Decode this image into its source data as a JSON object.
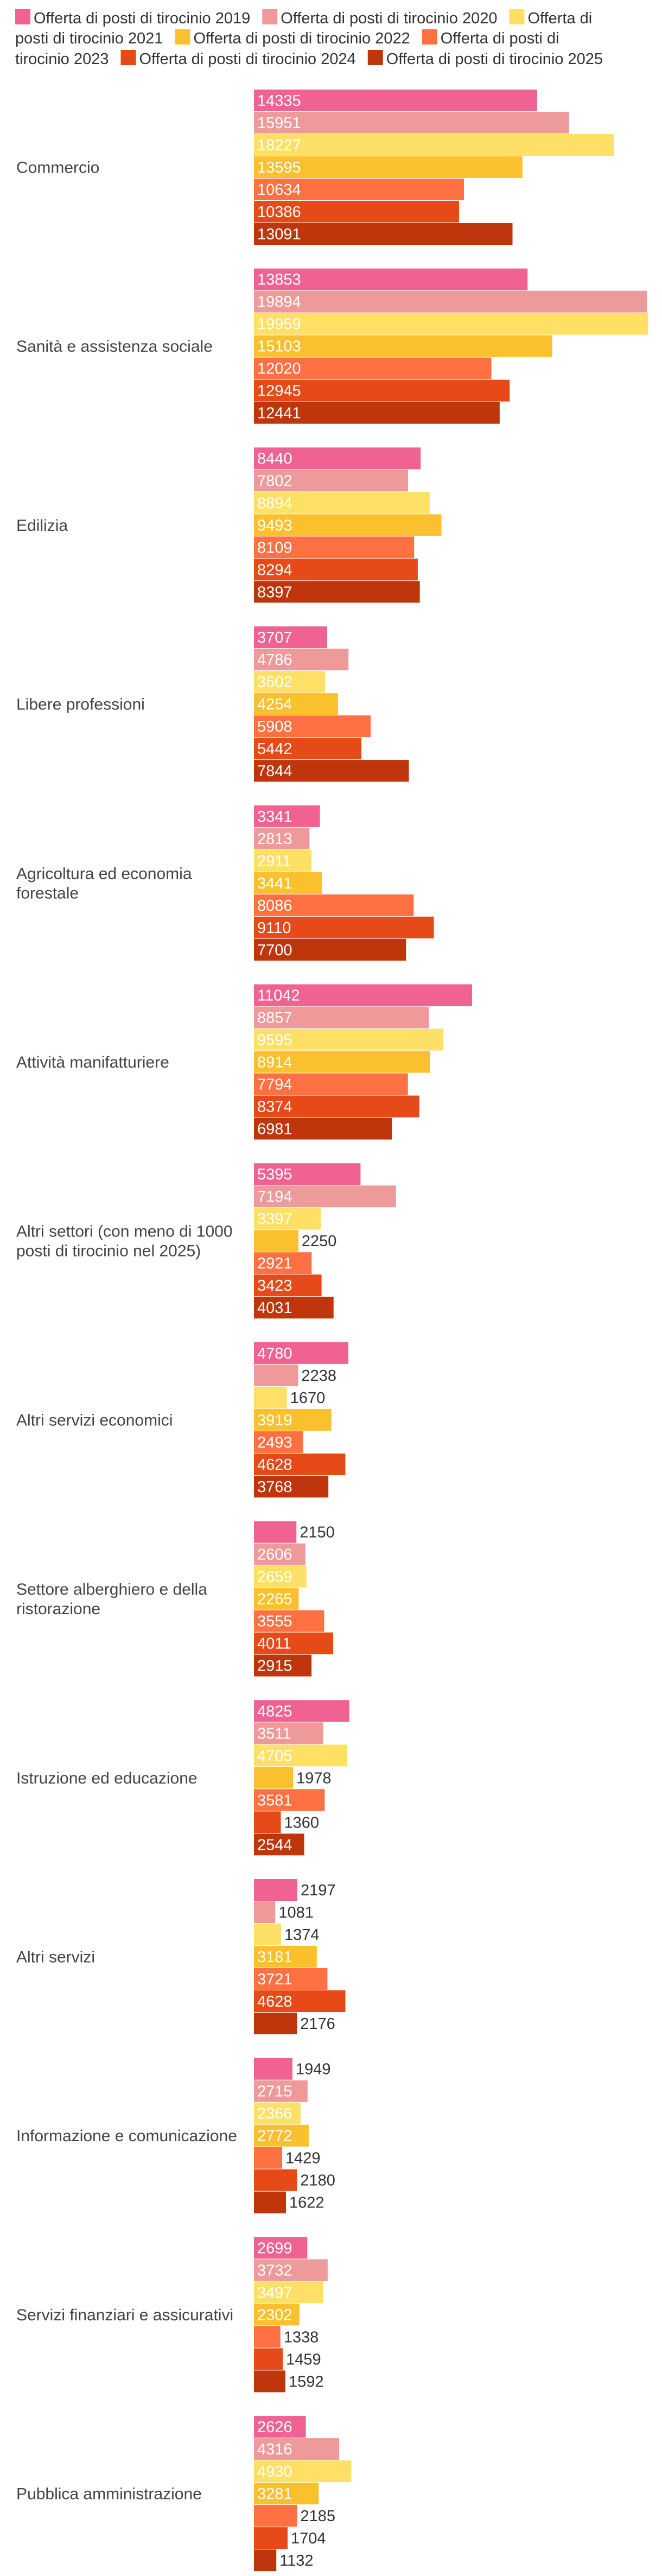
{
  "chart_data": {
    "type": "bar",
    "orientation": "horizontal",
    "title": "",
    "xlabel": "",
    "ylabel": "",
    "grid": false,
    "legend_position": "top",
    "xlim": [
      0,
      20000
    ],
    "legend_lines": [
      [
        {
          "series": 0,
          "text": "Offerta di posti di tirocinio 2019"
        },
        {
          "series": 1,
          "text": "Offerta di posti di tirocinio 2020"
        },
        {
          "series": 2,
          "text": "Offerta di"
        }
      ],
      [
        {
          "series": null,
          "text": "posti di tirocinio 2021"
        },
        {
          "series": 3,
          "text": "Offerta di posti di tirocinio 2022"
        },
        {
          "series": 4,
          "text": "Offerta di posti di"
        }
      ],
      [
        {
          "series": null,
          "text": "tirocinio 2023"
        },
        {
          "series": 5,
          "text": "Offerta di posti di tirocinio 2024"
        },
        {
          "series": 6,
          "text": "Offerta di posti di tirocinio 2025"
        }
      ]
    ],
    "categories": [
      {
        "lines": [
          "Commercio"
        ],
        "values": [
          14335,
          15951,
          18227,
          13595,
          10634,
          10386,
          13091
        ]
      },
      {
        "lines": [
          "Sanità e assistenza sociale"
        ],
        "values": [
          13853,
          19894,
          19959,
          15103,
          12020,
          12945,
          12441
        ]
      },
      {
        "lines": [
          "Edilizia"
        ],
        "values": [
          8440,
          7802,
          8894,
          9493,
          8109,
          8294,
          8397
        ]
      },
      {
        "lines": [
          "Libere professioni"
        ],
        "values": [
          3707,
          4786,
          3602,
          4254,
          5908,
          5442,
          7844
        ]
      },
      {
        "lines": [
          "Agricoltura ed economia",
          "forestale"
        ],
        "values": [
          3341,
          2813,
          2911,
          3441,
          8086,
          9110,
          7700
        ]
      },
      {
        "lines": [
          "Attività manifatturiere"
        ],
        "values": [
          11042,
          8857,
          9595,
          8914,
          7794,
          8374,
          6981
        ]
      },
      {
        "lines": [
          "Altri settori (con meno di 1000",
          "posti di tirocinio nel 2025)"
        ],
        "values": [
          5395,
          7194,
          3397,
          2250,
          2921,
          3423,
          4031
        ]
      },
      {
        "lines": [
          "Altri servizi economici"
        ],
        "values": [
          4780,
          2238,
          1670,
          3919,
          2493,
          4628,
          3768
        ]
      },
      {
        "lines": [
          "Settore alberghiero e della",
          "ristorazione"
        ],
        "values": [
          2150,
          2606,
          2659,
          2265,
          3555,
          4011,
          2915
        ]
      },
      {
        "lines": [
          "Istruzione ed educazione"
        ],
        "values": [
          4825,
          3511,
          4705,
          1978,
          3581,
          1360,
          2544
        ]
      },
      {
        "lines": [
          "Altri servizi"
        ],
        "values": [
          2197,
          1081,
          1374,
          3181,
          3721,
          4628,
          2176
        ]
      },
      {
        "lines": [
          "Informazione e comunicazione"
        ],
        "values": [
          1949,
          2715,
          2366,
          2772,
          1429,
          2180,
          1622
        ]
      },
      {
        "lines": [
          "Servizi finanziari e assicurativi"
        ],
        "values": [
          2699,
          3732,
          3497,
          2302,
          1338,
          1459,
          1592
        ]
      },
      {
        "lines": [
          "Pubblica amministrazione"
        ],
        "values": [
          2626,
          4316,
          4930,
          3281,
          2185,
          1704,
          1132
        ]
      }
    ],
    "series": [
      {
        "name": "Offerta di posti di tirocinio 2019",
        "color": "#f06292"
      },
      {
        "name": "Offerta di posti di tirocinio 2020",
        "color": "#ef9a9a"
      },
      {
        "name": "Offerta di posti di tirocinio 2021",
        "color": "#ffe066"
      },
      {
        "name": "Offerta di posti di tirocinio 2022",
        "color": "#fbc02d"
      },
      {
        "name": "Offerta di posti di tirocinio 2023",
        "color": "#ff7043"
      },
      {
        "name": "Offerta di posti di tirocinio 2024",
        "color": "#e64a19"
      },
      {
        "name": "Offerta di posti di tirocinio 2025",
        "color": "#bf360c"
      }
    ]
  }
}
